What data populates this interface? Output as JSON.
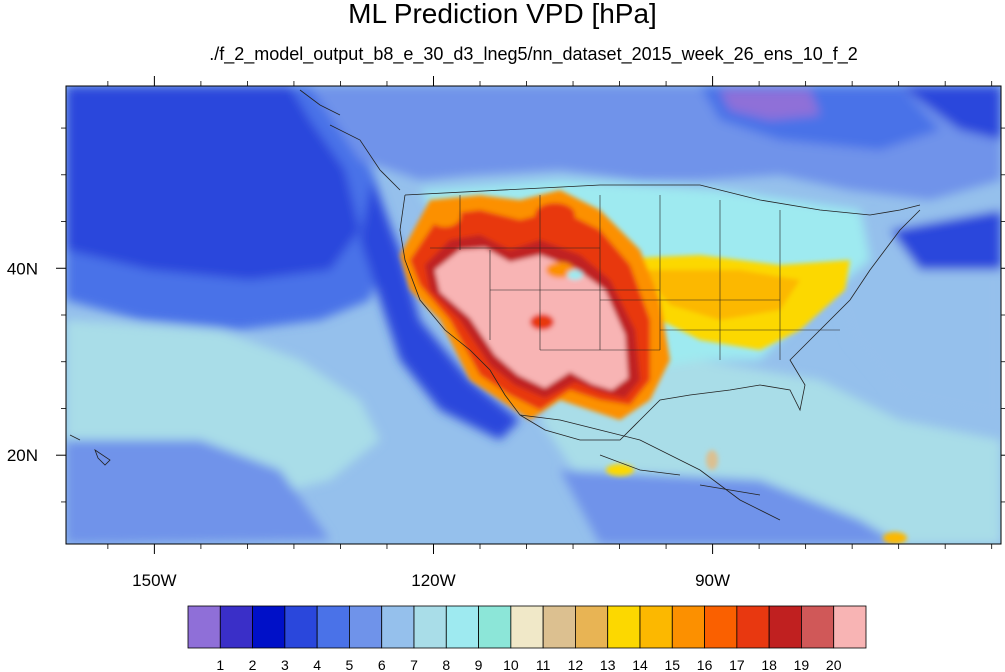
{
  "title": "ML Prediction VPD [hPa]",
  "subtitle": "./f_2_model_output_b8_e_30_d3_lneg5/nn_dataset_2015_week_26_ens_10_f_2",
  "map": {
    "lon_range": [
      -159.5,
      -59
    ],
    "lat_range": [
      10.5,
      59.5
    ],
    "x_ticks": [
      {
        "lon": -150,
        "label": "150W"
      },
      {
        "lon": -120,
        "label": "120W"
      },
      {
        "lon": -90,
        "label": "90W"
      }
    ],
    "y_ticks": [
      {
        "lat": 40,
        "label": "40N"
      },
      {
        "lat": 20,
        "label": "20N"
      }
    ]
  },
  "colorbar": {
    "colors": [
      "#8f6fd8",
      "#3a2fc8",
      "#0010c8",
      "#2a47dc",
      "#4a72e8",
      "#6f93ea",
      "#95c0ec",
      "#a9dde8",
      "#9eeaf0",
      "#8ce6d8",
      "#f0e8c8",
      "#dcc090",
      "#e8b454",
      "#fcd800",
      "#fcb800",
      "#fc9000",
      "#fa6000",
      "#e83810",
      "#c02020",
      "#d05858",
      "#f8b4b4"
    ],
    "labels": [
      "1",
      "2",
      "3",
      "4",
      "5",
      "6",
      "7",
      "8",
      "9",
      "10",
      "11",
      "12",
      "13",
      "14",
      "15",
      "16",
      "17",
      "18",
      "19",
      "20"
    ]
  }
}
